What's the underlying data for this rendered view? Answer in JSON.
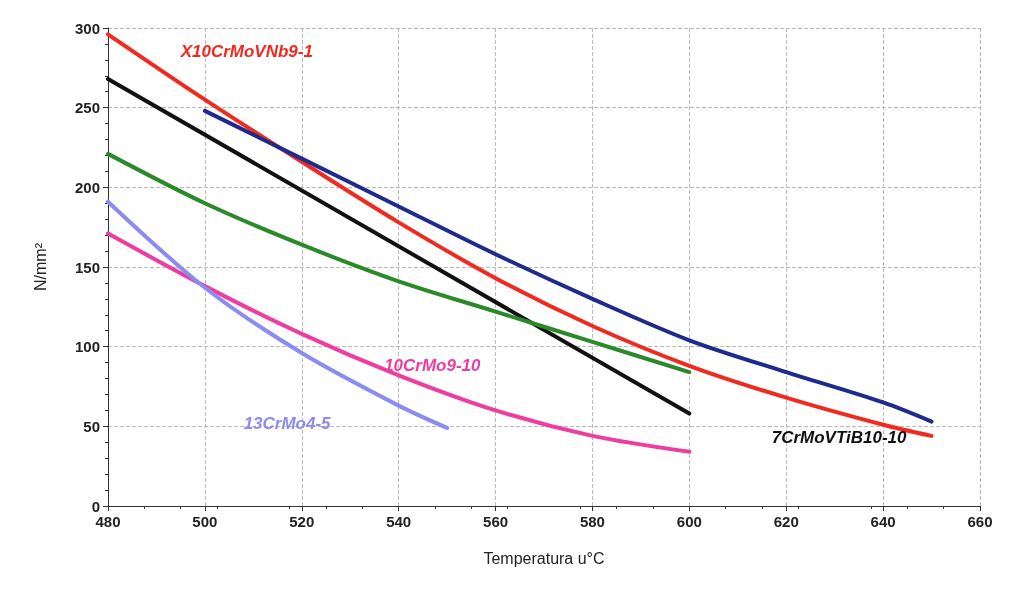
{
  "chart_data": {
    "type": "line",
    "xlabel": "Temperatura u°C",
    "ylabel": "N/mm²",
    "xlim": [
      480,
      660
    ],
    "xticks": [
      480,
      500,
      520,
      540,
      560,
      580,
      600,
      620,
      640,
      660
    ],
    "ylim": [
      0,
      300
    ],
    "yticks": [
      0,
      50,
      100,
      150,
      200,
      250,
      300
    ],
    "grid": true,
    "legend": false,
    "marker": "none",
    "line_style": "solid",
    "series": [
      {
        "name": "X10CrMoVNb9-1",
        "color": "#f02a1e",
        "x": [
          480,
          500,
          520,
          540,
          560,
          580,
          600,
          620,
          640,
          650
        ],
        "values": [
          296,
          255,
          216,
          178,
          143,
          113,
          88,
          68,
          51,
          44
        ]
      },
      {
        "color": "#1e2a8c",
        "x": [
          500,
          520,
          540,
          560,
          580,
          600,
          620,
          640,
          650
        ],
        "values": [
          248,
          218,
          188,
          158,
          130,
          104,
          84,
          65,
          53
        ]
      },
      {
        "name": "7CrMoVTiB10-10",
        "color": "#111111",
        "x": [
          480,
          600
        ],
        "values": [
          268,
          58
        ]
      },
      {
        "color": "#2a8a2a",
        "x": [
          480,
          500,
          520,
          540,
          560,
          580,
          600
        ],
        "values": [
          221,
          190,
          164,
          141,
          122,
          103,
          84
        ]
      },
      {
        "name": "10CrMo9-10",
        "color": "#ee3ca0",
        "x": [
          480,
          500,
          520,
          540,
          560,
          580,
          600
        ],
        "values": [
          171,
          138,
          108,
          82,
          60,
          44,
          34
        ]
      },
      {
        "name": "13CrMo4-5",
        "color": "#8c8cf0",
        "x": [
          480,
          500,
          520,
          540,
          550
        ],
        "values": [
          191,
          137,
          96,
          63,
          49
        ]
      }
    ]
  }
}
